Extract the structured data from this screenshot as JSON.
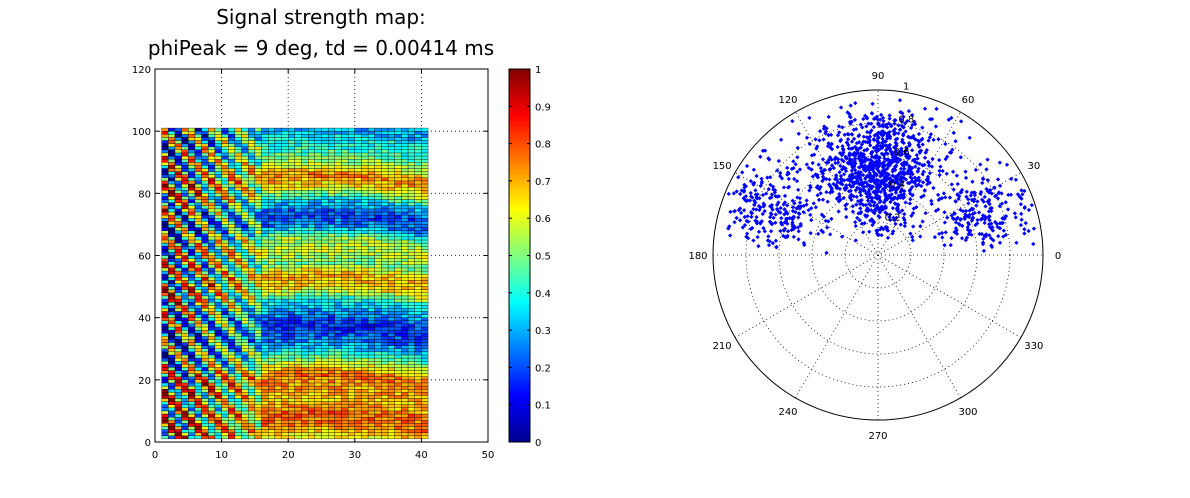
{
  "chart_data": [
    {
      "type": "heatmap",
      "title": "Signal strength map:",
      "subtitle": "phiPeak = 9 deg, td = 0.00414 ms",
      "xlabel": "",
      "ylabel": "",
      "xlim": [
        0,
        50
      ],
      "ylim": [
        0,
        120
      ],
      "x_ticks": [
        "0",
        "10",
        "20",
        "30",
        "40",
        "50"
      ],
      "y_ticks": [
        "0",
        "20",
        "40",
        "60",
        "80",
        "100",
        "120"
      ],
      "grid": true,
      "grid_x_range": [
        1,
        41
      ],
      "grid_y_range": [
        1,
        101
      ],
      "cell_width": 1,
      "cell_height": 1,
      "colormap": "jet",
      "clim": [
        0,
        1
      ],
      "colorbar_ticks": [
        "0",
        "0.1",
        "0.2",
        "0.3",
        "0.4",
        "0.5",
        "0.6",
        "0.7",
        "0.8",
        "0.9",
        "1"
      ],
      "row_profile": [
        [
          2,
          0.62
        ],
        [
          6,
          0.75
        ],
        [
          10,
          0.78
        ],
        [
          14,
          0.66
        ],
        [
          18,
          0.72
        ],
        [
          22,
          0.78
        ],
        [
          26,
          0.55
        ],
        [
          30,
          0.35
        ],
        [
          34,
          0.22
        ],
        [
          38,
          0.16
        ],
        [
          42,
          0.28
        ],
        [
          46,
          0.38
        ],
        [
          50,
          0.65
        ],
        [
          54,
          0.7
        ],
        [
          58,
          0.48
        ],
        [
          62,
          0.58
        ],
        [
          66,
          0.52
        ],
        [
          70,
          0.25
        ],
        [
          74,
          0.2
        ],
        [
          78,
          0.35
        ],
        [
          82,
          0.62
        ],
        [
          86,
          0.75
        ],
        [
          90,
          0.55
        ],
        [
          94,
          0.42
        ],
        [
          98,
          0.38
        ],
        [
          100,
          0.3
        ]
      ]
    },
    {
      "type": "scatter",
      "subtype": "polar",
      "title": "",
      "rlim": [
        0,
        1
      ],
      "r_ticks": [
        "0.2",
        "0.4",
        "0.6",
        "0.8",
        "1"
      ],
      "angle_ticks": [
        "0",
        "30",
        "60",
        "90",
        "120",
        "150",
        "180",
        "210",
        "240",
        "270",
        "300",
        "330"
      ],
      "marker_color": "#0000ff",
      "grid": true,
      "point_count": 1500,
      "clusters": [
        {
          "theta_deg": 90,
          "theta_spread": 20,
          "r": 0.55,
          "r_spread": 0.18,
          "count": 1050
        },
        {
          "theta_deg": 155,
          "theta_spread": 10,
          "r": 0.72,
          "r_spread": 0.16,
          "count": 240
        },
        {
          "theta_deg": 22,
          "theta_spread": 9,
          "r": 0.72,
          "r_spread": 0.16,
          "count": 210
        }
      ]
    }
  ]
}
